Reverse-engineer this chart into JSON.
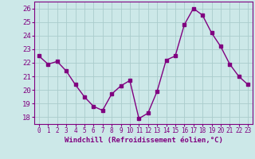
{
  "x": [
    0,
    1,
    2,
    3,
    4,
    5,
    6,
    7,
    8,
    9,
    10,
    11,
    12,
    13,
    14,
    15,
    16,
    17,
    18,
    19,
    20,
    21,
    22,
    23
  ],
  "y": [
    22.5,
    21.9,
    22.1,
    21.4,
    20.4,
    19.5,
    18.8,
    18.5,
    19.7,
    20.3,
    20.7,
    17.9,
    18.3,
    19.9,
    22.2,
    22.5,
    24.8,
    26.0,
    25.5,
    24.2,
    23.2,
    21.9,
    21.0,
    20.4
  ],
  "line_color": "#800080",
  "marker": "s",
  "markersize": 2.5,
  "linewidth": 1.0,
  "xlabel": "Windchill (Refroidissement éolien,°C)",
  "xlim": [
    -0.5,
    23.5
  ],
  "ylim": [
    17.5,
    26.5
  ],
  "yticks": [
    18,
    19,
    20,
    21,
    22,
    23,
    24,
    25,
    26
  ],
  "xticks": [
    0,
    1,
    2,
    3,
    4,
    5,
    6,
    7,
    8,
    9,
    10,
    11,
    12,
    13,
    14,
    15,
    16,
    17,
    18,
    19,
    20,
    21,
    22,
    23
  ],
  "bg_color": "#cce8e8",
  "grid_color": "#aacccc",
  "tick_color": "#800080",
  "label_color": "#800080",
  "xlabel_fontsize": 6.5,
  "ytick_fontsize": 6.5,
  "xtick_fontsize": 5.5,
  "spine_color": "#800080"
}
